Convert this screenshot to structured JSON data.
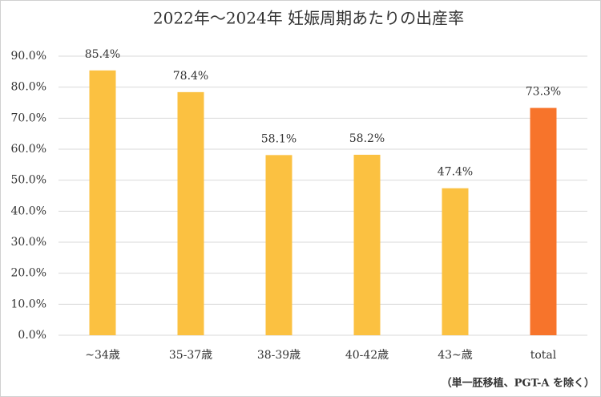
{
  "chart_data": {
    "type": "bar",
    "title": "2022年〜2024年 妊娠周期あたりの出産率",
    "categories": [
      "~34歳",
      "35-37歳",
      "38-39歳",
      "40-42歳",
      "43~歳",
      "total"
    ],
    "values": [
      85.4,
      78.4,
      58.1,
      58.2,
      47.4,
      73.3
    ],
    "value_labels": [
      "85.4%",
      "78.4%",
      "58.1%",
      "58.2%",
      "47.4%",
      "73.3%"
    ],
    "colors": [
      "#fbc141",
      "#fbc141",
      "#fbc141",
      "#fbc141",
      "#fbc141",
      "#f7742b"
    ],
    "ylim": [
      0,
      90
    ],
    "yticks": [
      {
        "value": 0,
        "label": "0.0%"
      },
      {
        "value": 10,
        "label": "10.0%"
      },
      {
        "value": 20,
        "label": "20.0%"
      },
      {
        "value": 30,
        "label": "30.0%"
      },
      {
        "value": 40,
        "label": "40.0%"
      },
      {
        "value": 50,
        "label": "50.0%"
      },
      {
        "value": 60,
        "label": "60.0%"
      },
      {
        "value": 70,
        "label": "70.0%"
      },
      {
        "value": 80,
        "label": "80.0%"
      },
      {
        "value": 90,
        "label": "90.0%"
      }
    ],
    "grid": true,
    "footnote": "（単一胚移植、PGT-A を除く）"
  }
}
